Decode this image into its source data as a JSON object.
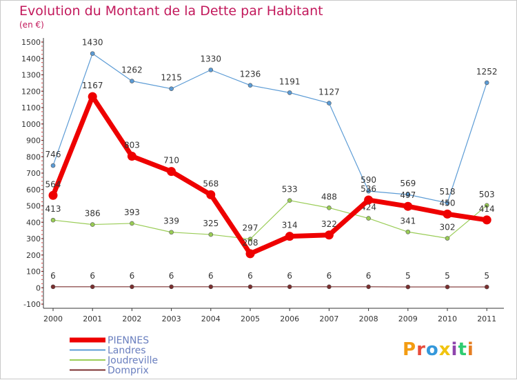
{
  "header": {
    "title": "Evolution du Montant de la Dette par Habitant",
    "subtitle": "(en €)"
  },
  "logo": {
    "text": "Proxiti",
    "colors": [
      "#f39c12",
      "#e74c3c",
      "#3498db",
      "#f1c40f",
      "#8e44ad",
      "#2ecc71",
      "#e67e22"
    ]
  },
  "chart_data": {
    "type": "line",
    "title": "Evolution du Montant de la Dette par Habitant",
    "subtitle": "(en €)",
    "xlabel": "",
    "ylabel": "",
    "x": [
      "2000",
      "2001",
      "2002",
      "2003",
      "2004",
      "2005",
      "2006",
      "2007",
      "2008",
      "2009",
      "2010",
      "2011"
    ],
    "ylim": [
      -100,
      1500
    ],
    "yticks": [
      -100,
      0,
      100,
      200,
      300,
      400,
      500,
      600,
      700,
      800,
      900,
      1000,
      1100,
      1200,
      1300,
      1400,
      1500
    ],
    "grid": false,
    "legend_position": "bottom-left",
    "series": [
      {
        "name": "PIENNES",
        "color": "#ee0000",
        "values": [
          564,
          1167,
          803,
          710,
          568,
          208,
          314,
          322,
          536,
          497,
          450,
          414
        ],
        "labels": [
          "564",
          "1167",
          "803",
          "710",
          "568",
          "208",
          "314",
          "322",
          "536",
          "497",
          "450",
          "414"
        ]
      },
      {
        "name": "Landres",
        "color": "#5b9bd5",
        "values": [
          746,
          1430,
          1262,
          1215,
          1330,
          1236,
          1191,
          1127,
          590,
          569,
          518,
          1252
        ],
        "labels": [
          "746",
          "1430",
          "1262",
          "1215",
          "1330",
          "1236",
          "1191",
          "1127",
          "590",
          "569",
          "518",
          "1252"
        ]
      },
      {
        "name": "Joudreville",
        "color": "#99cc55",
        "values": [
          413,
          386,
          393,
          339,
          325,
          297,
          533,
          488,
          424,
          341,
          302,
          503
        ],
        "labels": [
          "413",
          "386",
          "393",
          "339",
          "325",
          "297",
          "533",
          "488",
          "424",
          "341",
          "302",
          "503"
        ]
      },
      {
        "name": "Domprix",
        "color": "#7a2e2e",
        "values": [
          6,
          6,
          6,
          6,
          6,
          6,
          6,
          6,
          6,
          5,
          5,
          5
        ],
        "labels": [
          "6",
          "6",
          "6",
          "6",
          "6",
          "6",
          "6",
          "6",
          "6",
          "5",
          "5",
          "5"
        ]
      }
    ]
  }
}
